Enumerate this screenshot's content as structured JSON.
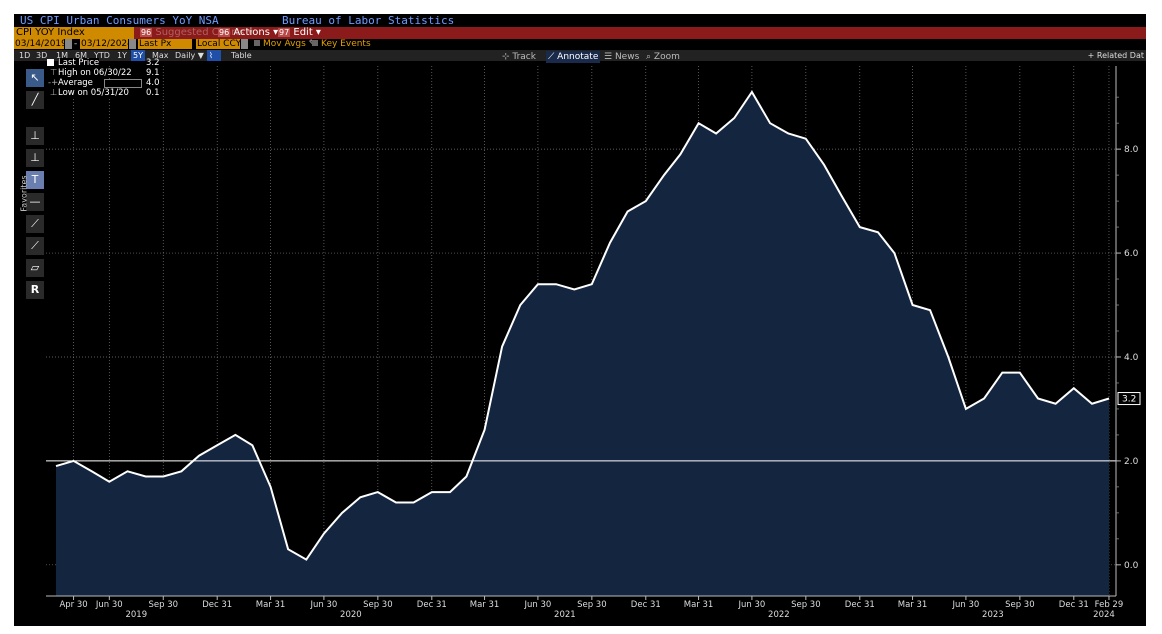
{
  "header": {
    "title": "US CPI Urban Consumers YoY NSA",
    "source": "Bureau of Labor Statistics"
  },
  "toolbar": {
    "ticker": "CPI YOY Index",
    "suggested": "Suggested Charts",
    "suggested_num": "96",
    "actions_num": "96",
    "actions": "Actions",
    "edit_num": "97",
    "edit": "Edit"
  },
  "settings": {
    "start_date": "03/14/2019",
    "end_date": "03/12/2024",
    "price_field": "Last Px",
    "currency": "Local CCY",
    "mov_avgs": "Mov Avgs",
    "key_events": "Key Events"
  },
  "ranges": {
    "items": [
      "1D",
      "3D",
      "1M",
      "6M",
      "YTD",
      "1Y",
      "5Y",
      "Max"
    ],
    "selected": "5Y",
    "frequency": "Daily",
    "table": "Table",
    "related": "+ Related Dat"
  },
  "chart_controls": {
    "track": "Track",
    "annotate": "Annotate",
    "news": "News",
    "zoom": "Zoom"
  },
  "legend": {
    "last_label": "Last Price",
    "last_value": "3.2",
    "high_label": "High on 06/30/22",
    "high_value": "9.1",
    "avg_label": "Average",
    "avg_value": "4.0",
    "low_label": "Low on 05/31/20",
    "low_value": "0.1"
  },
  "sidebar": {
    "favorites": "Favorites"
  },
  "colors": {
    "background": "#000000",
    "area_fill": "#142540",
    "line": "#ffffff",
    "grid": "#7a7a7a",
    "title_text": "#6f9cff",
    "toolbar": "#8b1a1a",
    "field": "#d08a00"
  },
  "chart_data": {
    "type": "area",
    "title": "US CPI Urban Consumers YoY NSA",
    "ylim": [
      -0.6,
      9.6
    ],
    "y_ticks": [
      0.0,
      2.0,
      4.0,
      6.0,
      8.0
    ],
    "y_tick_labels": [
      "0.0",
      "2.0",
      "4.0",
      "6.0",
      "8.0"
    ],
    "last_value_label": "3.2",
    "reference_line": 2.0,
    "x_ticks": [
      {
        "label": "Apr 30",
        "date": "2019-04-30"
      },
      {
        "label": "Jun 30",
        "date": "2019-06-30"
      },
      {
        "label": "Sep 30",
        "date": "2019-09-30"
      },
      {
        "label": "Dec 31",
        "date": "2019-12-31"
      },
      {
        "label": "Mar 31",
        "date": "2020-03-31"
      },
      {
        "label": "Jun 30",
        "date": "2020-06-30"
      },
      {
        "label": "Sep 30",
        "date": "2020-09-30"
      },
      {
        "label": "Dec 31",
        "date": "2020-12-31"
      },
      {
        "label": "Mar 31",
        "date": "2021-03-31"
      },
      {
        "label": "Jun 30",
        "date": "2021-06-30"
      },
      {
        "label": "Sep 30",
        "date": "2021-09-30"
      },
      {
        "label": "Dec 31",
        "date": "2021-12-31"
      },
      {
        "label": "Mar 31",
        "date": "2022-03-31"
      },
      {
        "label": "Jun 30",
        "date": "2022-06-30"
      },
      {
        "label": "Sep 30",
        "date": "2022-09-30"
      },
      {
        "label": "Dec 31",
        "date": "2022-12-31"
      },
      {
        "label": "Mar 31",
        "date": "2023-03-31"
      },
      {
        "label": "Jun 30",
        "date": "2023-06-30"
      },
      {
        "label": "Sep 30",
        "date": "2023-09-30"
      },
      {
        "label": "Dec 31",
        "date": "2023-12-31"
      },
      {
        "label": "Feb 29",
        "date": "2024-02-29"
      }
    ],
    "year_labels": [
      {
        "label": "2019",
        "date": "2019-08-15"
      },
      {
        "label": "2020",
        "date": "2020-08-15"
      },
      {
        "label": "2021",
        "date": "2021-08-15"
      },
      {
        "label": "2022",
        "date": "2022-08-15"
      },
      {
        "label": "2023",
        "date": "2023-08-15"
      },
      {
        "label": "2024",
        "date": "2024-02-29"
      }
    ],
    "x_range": [
      "2019-03-14",
      "2024-03-12"
    ],
    "series": [
      {
        "x": [
          "2019-03-31",
          "2019-04-30",
          "2019-05-31",
          "2019-06-30",
          "2019-07-31",
          "2019-08-31",
          "2019-09-30",
          "2019-10-31",
          "2019-11-30",
          "2019-12-31",
          "2020-01-31",
          "2020-02-29",
          "2020-03-31",
          "2020-04-30",
          "2020-05-31",
          "2020-06-30",
          "2020-07-31",
          "2020-08-31",
          "2020-09-30",
          "2020-10-31",
          "2020-11-30",
          "2020-12-31",
          "2021-01-31",
          "2021-02-28",
          "2021-03-31",
          "2021-04-30",
          "2021-05-31",
          "2021-06-30",
          "2021-07-31",
          "2021-08-31",
          "2021-09-30",
          "2021-10-31",
          "2021-11-30",
          "2021-12-31",
          "2022-01-31",
          "2022-02-28",
          "2022-03-31",
          "2022-04-30",
          "2022-05-31",
          "2022-06-30",
          "2022-07-31",
          "2022-08-31",
          "2022-09-30",
          "2022-10-31",
          "2022-11-30",
          "2022-12-31",
          "2023-01-31",
          "2023-02-28",
          "2023-03-31",
          "2023-04-30",
          "2023-05-31",
          "2023-06-30",
          "2023-07-31",
          "2023-08-31",
          "2023-09-30",
          "2023-10-31",
          "2023-11-30",
          "2023-12-31",
          "2024-01-31",
          "2024-02-29"
        ],
        "values": [
          1.9,
          2.0,
          1.8,
          1.6,
          1.8,
          1.7,
          1.7,
          1.8,
          2.1,
          2.3,
          2.5,
          2.3,
          1.5,
          0.3,
          0.1,
          0.6,
          1.0,
          1.3,
          1.4,
          1.2,
          1.2,
          1.4,
          1.4,
          1.7,
          2.6,
          4.2,
          5.0,
          5.4,
          5.4,
          5.3,
          5.4,
          6.2,
          6.8,
          7.0,
          7.5,
          7.9,
          8.5,
          8.3,
          8.6,
          9.1,
          8.5,
          8.3,
          8.2,
          7.7,
          7.1,
          6.5,
          6.4,
          6.0,
          5.0,
          4.9,
          4.0,
          3.0,
          3.2,
          3.7,
          3.7,
          3.2,
          3.1,
          3.4,
          3.1,
          3.2
        ]
      }
    ]
  }
}
